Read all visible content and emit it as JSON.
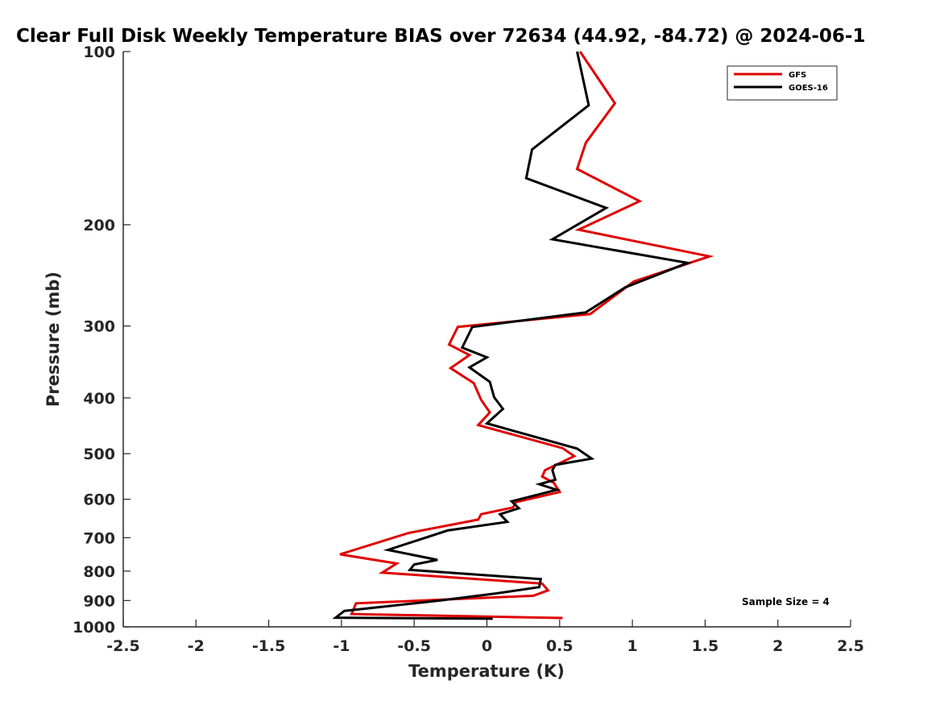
{
  "chart_data": {
    "type": "line",
    "title": "Clear Full Disk Weekly Temperature BIAS over 72634 (44.92, -84.72) @ 2024-06-1",
    "xlabel": "Temperature (K)",
    "ylabel": "Pressure (mb)",
    "xlim": [
      -2.5,
      2.5
    ],
    "ylim": [
      100,
      1000
    ],
    "yscale": "log",
    "y_reversed": true,
    "xticks": [
      -2.5,
      -2,
      -1.5,
      -1,
      -0.5,
      0,
      0.5,
      1,
      1.5,
      2,
      2.5
    ],
    "xtick_labels": [
      "-2.5",
      "-2",
      "-1.5",
      "-1",
      "-0.5",
      "0",
      "0.5",
      "1",
      "1.5",
      "2",
      "2.5"
    ],
    "yticks": [
      100,
      200,
      300,
      400,
      500,
      600,
      700,
      800,
      900,
      1000
    ],
    "ytick_labels": [
      "100",
      "200",
      "300",
      "400",
      "500",
      "600",
      "700",
      "800",
      "900",
      "1000"
    ],
    "grid": false,
    "legend_position": "top-right",
    "series": [
      {
        "name": "GFS",
        "color": "#e00000",
        "x": [
          0.64,
          0.88,
          0.68,
          0.62,
          1.05,
          0.63,
          1.53,
          1.01,
          0.71,
          -0.2,
          -0.26,
          -0.12,
          -0.25,
          -0.09,
          -0.04,
          0.02,
          -0.06,
          0.52,
          0.6,
          0.4,
          0.38,
          0.46,
          0.5,
          0.2,
          0.18,
          -0.04,
          -0.06,
          -0.54,
          -1.01,
          -0.62,
          -0.72,
          0.38,
          0.42,
          0.32,
          -0.9,
          -0.93,
          0.52
        ],
        "y": [
          100,
          123,
          144,
          160,
          182,
          204,
          227,
          251,
          286,
          301,
          323,
          337,
          355,
          377,
          403,
          424,
          446,
          489,
          505,
          534,
          548,
          562,
          583,
          607,
          620,
          637,
          651,
          687,
          748,
          776,
          805,
          841,
          864,
          883,
          910,
          950,
          965
        ]
      },
      {
        "name": "GOES-16",
        "color": "#000000",
        "x": [
          0.62,
          0.7,
          0.31,
          0.27,
          0.82,
          0.45,
          1.38,
          0.95,
          0.68,
          -0.1,
          -0.17,
          0.0,
          -0.12,
          0.02,
          0.05,
          0.11,
          0.0,
          0.62,
          0.72,
          0.47,
          0.45,
          0.47,
          0.36,
          0.48,
          0.17,
          0.22,
          0.09,
          0.14,
          -0.27,
          -0.68,
          -0.34,
          -0.5,
          -0.53,
          0.37,
          0.36,
          0.06,
          -0.32,
          -0.98,
          -1.04,
          0.04
        ],
        "y": [
          100,
          124,
          148,
          166,
          187,
          212,
          233,
          257,
          284,
          301,
          327,
          340,
          354,
          375,
          399,
          418,
          443,
          490,
          510,
          523,
          534,
          555,
          565,
          578,
          605,
          622,
          637,
          657,
          680,
          735,
          765,
          779,
          796,
          826,
          853,
          875,
          900,
          938,
          964,
          968
        ]
      }
    ],
    "annotations": [
      "Sample Size = 4"
    ]
  }
}
